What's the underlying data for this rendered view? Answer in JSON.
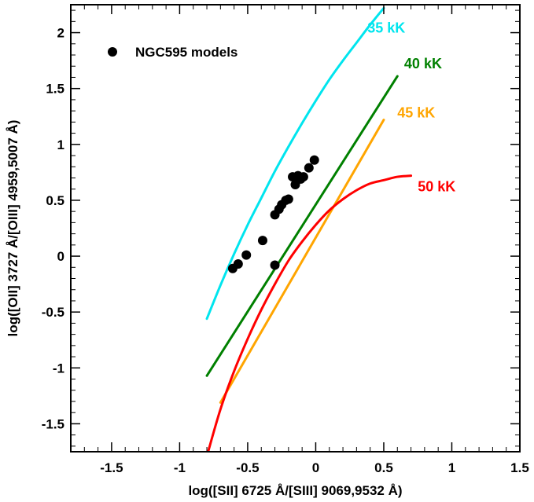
{
  "chart_data": {
    "type": "scatter",
    "xlabel": "log([SII] 6725 Å/[SIII] 9069,9532 Å)",
    "ylabel": "log([OII] 3727 Å/[OIII] 4959,5007 Å)",
    "xlim": [
      -1.8,
      1.5
    ],
    "ylim": [
      -1.75,
      2.25
    ],
    "xticks": [
      -1.5,
      -1,
      -0.5,
      0,
      0.5,
      1,
      1.5
    ],
    "xtick_labels": [
      "-1.5",
      "-1",
      "-0.5",
      "0",
      "0.5",
      "1",
      "1.5"
    ],
    "yticks": [
      -1.5,
      -1,
      -0.5,
      0,
      0.5,
      1,
      1.5,
      2
    ],
    "ytick_labels": [
      "-1.5",
      "-1",
      "-0.5",
      "0",
      "0.5",
      "1",
      "1.5",
      "2"
    ],
    "grid": false,
    "legend": {
      "position": "top-left",
      "entries": [
        "NGC595 models"
      ]
    },
    "points": {
      "name": "NGC595 models",
      "color": "#000000",
      "x": [
        -0.61,
        -0.57,
        -0.51,
        -0.39,
        -0.3,
        -0.27,
        -0.25,
        -0.22,
        -0.2,
        -0.17,
        -0.15,
        -0.14,
        -0.13,
        -0.11,
        -0.09,
        -0.05,
        -0.01,
        -0.3
      ],
      "y": [
        -0.11,
        -0.07,
        0.01,
        0.14,
        0.37,
        0.42,
        0.46,
        0.5,
        0.51,
        0.71,
        0.64,
        0.69,
        0.72,
        0.69,
        0.71,
        0.79,
        0.86,
        -0.08
      ]
    },
    "series": [
      {
        "name": "35 kK",
        "color": "#00e5ee",
        "x": [
          -0.8,
          -0.7,
          -0.6,
          -0.5,
          -0.4,
          -0.3,
          -0.2,
          -0.1,
          0,
          0.1,
          0.2,
          0.3,
          0.4,
          0.5
        ],
        "y": [
          -0.56,
          -0.26,
          0.02,
          0.28,
          0.52,
          0.76,
          0.98,
          1.19,
          1.39,
          1.58,
          1.75,
          1.91,
          2.07,
          2.22
        ]
      },
      {
        "name": "40 kK",
        "color": "#008000",
        "x": [
          -0.8,
          0.6
        ],
        "y": [
          -1.07,
          1.61
        ]
      },
      {
        "name": "45 kK",
        "color": "#ffa500",
        "x": [
          -0.7,
          0.5
        ],
        "y": [
          -1.31,
          1.22
        ]
      },
      {
        "name": "50 kK",
        "color": "#ff0000",
        "x": [
          -0.8,
          -0.7,
          -0.6,
          -0.5,
          -0.4,
          -0.3,
          -0.2,
          -0.1,
          0,
          0.1,
          0.2,
          0.3,
          0.4,
          0.5,
          0.6,
          0.7
        ],
        "y": [
          -1.79,
          -1.37,
          -1.03,
          -0.74,
          -0.48,
          -0.25,
          -0.04,
          0.13,
          0.28,
          0.41,
          0.51,
          0.59,
          0.65,
          0.68,
          0.71,
          0.72
        ]
      }
    ]
  }
}
